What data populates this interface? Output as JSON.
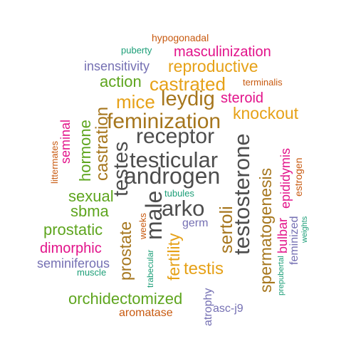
{
  "palette": {
    "dark_gray": "#4d4d4d",
    "orange_brown": "#c85a10",
    "gold": "#e6a117",
    "olive_brown": "#a6761d",
    "green": "#5ea51e",
    "magenta": "#e2138a",
    "purple": "#7570b3",
    "teal": "#1b9e77"
  },
  "words": [
    {
      "text": "hypogonadal",
      "color": "orange_brown",
      "rotated": false
    },
    {
      "text": "puberty",
      "color": "teal",
      "rotated": false
    },
    {
      "text": "masculinization",
      "color": "magenta",
      "rotated": false
    },
    {
      "text": "insensitivity",
      "color": "purple",
      "rotated": false
    },
    {
      "text": "reproductive",
      "color": "gold",
      "rotated": false
    },
    {
      "text": "action",
      "color": "green",
      "rotated": false
    },
    {
      "text": "castrated",
      "color": "gold",
      "rotated": false
    },
    {
      "text": "terminalis",
      "color": "orange_brown",
      "rotated": false
    },
    {
      "text": "mice",
      "color": "gold",
      "rotated": false
    },
    {
      "text": "leydig",
      "color": "olive_brown",
      "rotated": false
    },
    {
      "text": "steroid",
      "color": "magenta",
      "rotated": false
    },
    {
      "text": "feminization",
      "color": "olive_brown",
      "rotated": false
    },
    {
      "text": "knockout",
      "color": "gold",
      "rotated": false
    },
    {
      "text": "receptor",
      "color": "dark_gray",
      "rotated": false
    },
    {
      "text": "testicular",
      "color": "dark_gray",
      "rotated": false
    },
    {
      "text": "androgen",
      "color": "dark_gray",
      "rotated": false
    },
    {
      "text": "arko",
      "color": "dark_gray",
      "rotated": false
    },
    {
      "text": "sexual",
      "color": "green",
      "rotated": false
    },
    {
      "text": "sbma",
      "color": "green",
      "rotated": false
    },
    {
      "text": "tubules",
      "color": "teal",
      "rotated": false
    },
    {
      "text": "germ",
      "color": "purple",
      "rotated": false
    },
    {
      "text": "prostatic",
      "color": "green",
      "rotated": false
    },
    {
      "text": "dimorphic",
      "color": "magenta",
      "rotated": false
    },
    {
      "text": "seminiferous",
      "color": "purple",
      "rotated": false
    },
    {
      "text": "muscle",
      "color": "teal",
      "rotated": false
    },
    {
      "text": "testis",
      "color": "gold",
      "rotated": false
    },
    {
      "text": "orchidectomized",
      "color": "green",
      "rotated": false
    },
    {
      "text": "asc-j9",
      "color": "purple",
      "rotated": false
    },
    {
      "text": "aromatase",
      "color": "orange_brown",
      "rotated": false
    },
    {
      "text": "littermates",
      "color": "orange_brown",
      "rotated": true
    },
    {
      "text": "seminal",
      "color": "magenta",
      "rotated": true
    },
    {
      "text": "hormone",
      "color": "green",
      "rotated": true
    },
    {
      "text": "castration",
      "color": "olive_brown",
      "rotated": true
    },
    {
      "text": "testes",
      "color": "dark_gray",
      "rotated": true
    },
    {
      "text": "male",
      "color": "dark_gray",
      "rotated": true
    },
    {
      "text": "prostate",
      "color": "olive_brown",
      "rotated": true
    },
    {
      "text": "weeks",
      "color": "orange_brown",
      "rotated": true
    },
    {
      "text": "trabecular",
      "color": "teal",
      "rotated": true
    },
    {
      "text": "fertility",
      "color": "gold",
      "rotated": true
    },
    {
      "text": "sertoli",
      "color": "olive_brown",
      "rotated": true
    },
    {
      "text": "testosterone",
      "color": "dark_gray",
      "rotated": true
    },
    {
      "text": "spermatogenesis",
      "color": "olive_brown",
      "rotated": true
    },
    {
      "text": "epididymis",
      "color": "magenta",
      "rotated": true
    },
    {
      "text": "estrogen",
      "color": "orange_brown",
      "rotated": true
    },
    {
      "text": "bulbar",
      "color": "magenta",
      "rotated": true
    },
    {
      "text": "feminized",
      "color": "purple",
      "rotated": true
    },
    {
      "text": "prepubertal",
      "color": "teal",
      "rotated": true
    },
    {
      "text": "weights",
      "color": "teal",
      "rotated": true
    },
    {
      "text": "atrophy",
      "color": "purple",
      "rotated": true
    }
  ]
}
